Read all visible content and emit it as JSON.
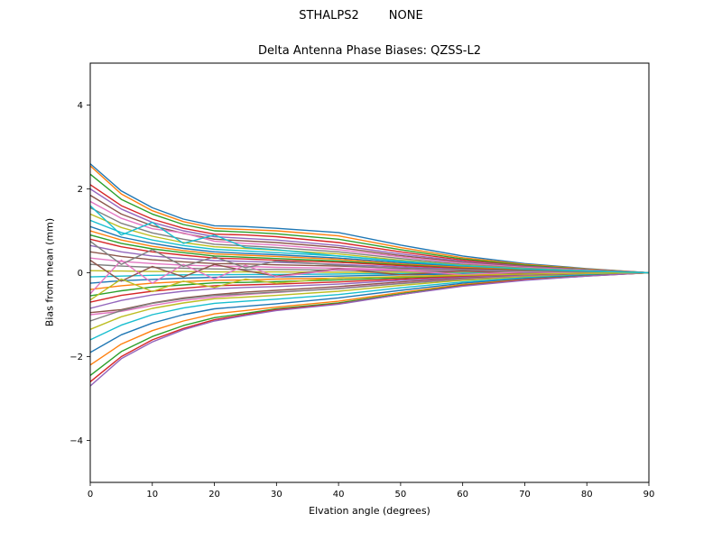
{
  "chart_data": {
    "type": "line",
    "suptitle": "STHALPS2        NONE",
    "title": "Delta Antenna Phase Biases: QZSS-L2",
    "xlabel": "Elvation angle (degrees)",
    "ylabel": "Bias from mean (mm)",
    "xlim": [
      0,
      90
    ],
    "ylim": [
      -5,
      5
    ],
    "xticks": [
      0,
      10,
      20,
      30,
      40,
      50,
      60,
      70,
      80,
      90
    ],
    "yticks": [
      -4,
      -2,
      0,
      2,
      4
    ],
    "grid": false,
    "legend": "none",
    "palette": [
      "#1f77b4",
      "#ff7f0e",
      "#2ca02c",
      "#d62728",
      "#9467bd",
      "#8c564b",
      "#e377c2",
      "#7f7f7f",
      "#bcbd22",
      "#17becf"
    ],
    "x": [
      0,
      5,
      10,
      15,
      20,
      25,
      30,
      40,
      50,
      60,
      70,
      80,
      90
    ],
    "series_values": [
      [
        2.6,
        1.95,
        1.55,
        1.28,
        1.12,
        1.1,
        1.06,
        0.96,
        0.66,
        0.4,
        0.22,
        0.1,
        0
      ],
      [
        2.55,
        1.88,
        1.48,
        1.22,
        1.06,
        1.03,
        1.0,
        0.88,
        0.6,
        0.36,
        0.2,
        0.09,
        0
      ],
      [
        2.35,
        1.75,
        1.4,
        1.15,
        1.0,
        0.97,
        0.93,
        0.8,
        0.55,
        0.33,
        0.18,
        0.08,
        0
      ],
      [
        2.1,
        1.6,
        1.28,
        1.06,
        0.92,
        0.9,
        0.86,
        0.72,
        0.5,
        0.3,
        0.16,
        0.07,
        0
      ],
      [
        2.0,
        1.52,
        1.2,
        1.0,
        0.86,
        0.82,
        0.78,
        0.65,
        0.45,
        0.27,
        0.15,
        0.07,
        0
      ],
      [
        1.85,
        1.4,
        1.12,
        0.94,
        0.8,
        0.76,
        0.72,
        0.6,
        0.41,
        0.25,
        0.14,
        0.06,
        0
      ],
      [
        1.7,
        1.3,
        1.05,
        0.95,
        0.75,
        0.7,
        0.66,
        0.55,
        0.38,
        0.23,
        0.13,
        0.06,
        0
      ],
      [
        1.55,
        1.18,
        0.95,
        0.8,
        0.68,
        0.64,
        0.6,
        0.5,
        0.34,
        0.2,
        0.11,
        0.05,
        0
      ],
      [
        1.4,
        1.08,
        0.87,
        0.72,
        0.62,
        0.58,
        0.54,
        0.45,
        0.3,
        0.18,
        0.1,
        0.05,
        0
      ],
      [
        1.25,
        0.96,
        0.78,
        0.65,
        0.56,
        0.52,
        0.48,
        0.4,
        0.27,
        0.16,
        0.09,
        0.04,
        0
      ],
      [
        1.1,
        0.85,
        0.7,
        0.58,
        0.5,
        0.46,
        0.43,
        0.35,
        0.24,
        0.14,
        0.08,
        0.04,
        0
      ],
      [
        1.0,
        0.78,
        0.63,
        0.53,
        0.45,
        0.42,
        0.39,
        0.32,
        0.21,
        0.13,
        0.07,
        0.03,
        0
      ],
      [
        0.9,
        0.7,
        0.57,
        0.48,
        0.4,
        0.37,
        0.34,
        0.28,
        0.19,
        0.11,
        0.06,
        0.03,
        0
      ],
      [
        0.8,
        0.62,
        0.5,
        0.42,
        0.35,
        0.33,
        0.3,
        0.25,
        0.17,
        0.1,
        0.05,
        0.02,
        0
      ],
      [
        0.65,
        0.5,
        0.4,
        0.34,
        0.29,
        0.27,
        0.25,
        0.2,
        0.14,
        0.08,
        0.04,
        0.02,
        0
      ],
      [
        0.5,
        0.39,
        0.31,
        0.26,
        0.22,
        0.21,
        0.19,
        0.16,
        0.11,
        0.06,
        0.03,
        0.01,
        0
      ],
      [
        0.35,
        0.27,
        0.22,
        0.18,
        0.16,
        0.15,
        0.13,
        0.11,
        0.08,
        0.04,
        0.02,
        0.01,
        0
      ],
      [
        0.2,
        0.16,
        0.13,
        0.11,
        0.09,
        0.08,
        0.08,
        0.06,
        0.04,
        0.03,
        0.01,
        0.01,
        0
      ],
      [
        0.05,
        0.04,
        0.03,
        0.03,
        0.02,
        0.02,
        0.02,
        0.01,
        0.01,
        0,
        0,
        0,
        0
      ],
      [
        -0.1,
        -0.08,
        -0.06,
        -0.05,
        -0.05,
        -0.04,
        -0.04,
        -0.03,
        -0.02,
        -0.01,
        -0.01,
        0,
        0
      ],
      [
        -0.25,
        -0.19,
        -0.16,
        -0.13,
        -0.11,
        -0.1,
        -0.1,
        -0.08,
        -0.05,
        -0.03,
        -0.02,
        -0.01,
        0
      ],
      [
        -0.4,
        -0.31,
        -0.25,
        -0.21,
        -0.18,
        -0.17,
        -0.15,
        -0.13,
        -0.09,
        -0.05,
        -0.03,
        -0.01,
        0
      ],
      [
        -0.55,
        -0.43,
        -0.34,
        -0.29,
        -0.24,
        -0.23,
        -0.21,
        -0.17,
        -0.12,
        -0.07,
        -0.04,
        -0.02,
        0
      ],
      [
        -0.7,
        -0.54,
        -0.44,
        -0.37,
        -0.31,
        -0.29,
        -0.27,
        -0.22,
        -0.15,
        -0.09,
        -0.05,
        -0.02,
        0
      ],
      [
        -0.85,
        -0.66,
        -0.53,
        -0.44,
        -0.38,
        -0.35,
        -0.33,
        -0.27,
        -0.18,
        -0.11,
        -0.06,
        -0.03,
        0
      ],
      [
        -0.95,
        -0.88,
        -0.72,
        -0.6,
        -0.52,
        -0.46,
        -0.42,
        -0.33,
        -0.22,
        -0.13,
        -0.07,
        -0.03,
        0
      ],
      [
        -1.0,
        -0.92,
        -0.78,
        -0.66,
        -0.58,
        -0.52,
        -0.47,
        -0.37,
        -0.25,
        -0.15,
        -0.08,
        -0.04,
        0
      ],
      [
        -1.15,
        -0.9,
        -0.73,
        -0.62,
        -0.54,
        -0.5,
        -0.46,
        -0.38,
        -0.26,
        -0.16,
        -0.09,
        -0.04,
        0
      ],
      [
        -1.35,
        -1.05,
        -0.85,
        -0.72,
        -0.62,
        -0.58,
        -0.54,
        -0.44,
        -0.3,
        -0.18,
        -0.1,
        -0.05,
        0
      ],
      [
        -1.6,
        -1.25,
        -1.0,
        -0.84,
        -0.73,
        -0.68,
        -0.63,
        -0.52,
        -0.36,
        -0.22,
        -0.12,
        -0.05,
        0
      ],
      [
        -1.9,
        -1.48,
        -1.2,
        -1.0,
        -0.86,
        -0.8,
        -0.74,
        -0.6,
        -0.42,
        -0.25,
        -0.14,
        -0.06,
        0
      ],
      [
        -2.2,
        -1.7,
        -1.38,
        -1.15,
        -0.98,
        -0.9,
        -0.82,
        -0.68,
        -0.47,
        -0.28,
        -0.16,
        -0.07,
        0
      ],
      [
        -2.45,
        -1.88,
        -1.52,
        -1.26,
        -1.07,
        -0.97,
        -0.86,
        -0.72,
        -0.5,
        -0.3,
        -0.17,
        -0.07,
        0
      ],
      [
        -2.6,
        -2.0,
        -1.6,
        -1.33,
        -1.12,
        -1.0,
        -0.88,
        -0.74,
        -0.52,
        -0.31,
        -0.17,
        -0.08,
        0
      ],
      [
        -2.7,
        -2.05,
        -1.65,
        -1.36,
        -1.15,
        -1.02,
        -0.9,
        -0.75,
        -0.52,
        -0.32,
        -0.18,
        -0.08,
        0
      ],
      [
        0.3,
        -0.2,
        0.15,
        -0.1,
        0.2,
        0.05,
        -0.08,
        0.1,
        -0.05,
        0.04,
        -0.02,
        0.01,
        0
      ],
      [
        -0.5,
        0.3,
        -0.25,
        0.2,
        -0.15,
        0.18,
        -0.1,
        0.08,
        0.06,
        -0.04,
        0.02,
        -0.01,
        0
      ],
      [
        0.75,
        0.2,
        0.55,
        0.15,
        0.38,
        0.12,
        0.28,
        0.18,
        0.1,
        0.07,
        0.04,
        0.02,
        0
      ],
      [
        -0.65,
        -0.15,
        -0.45,
        -0.2,
        -0.35,
        -0.15,
        -0.25,
        -0.12,
        -0.1,
        -0.06,
        -0.03,
        -0.01,
        0
      ],
      [
        1.6,
        0.9,
        1.2,
        0.7,
        0.9,
        0.6,
        0.55,
        0.4,
        0.28,
        0.17,
        0.09,
        0.04,
        0
      ]
    ]
  }
}
